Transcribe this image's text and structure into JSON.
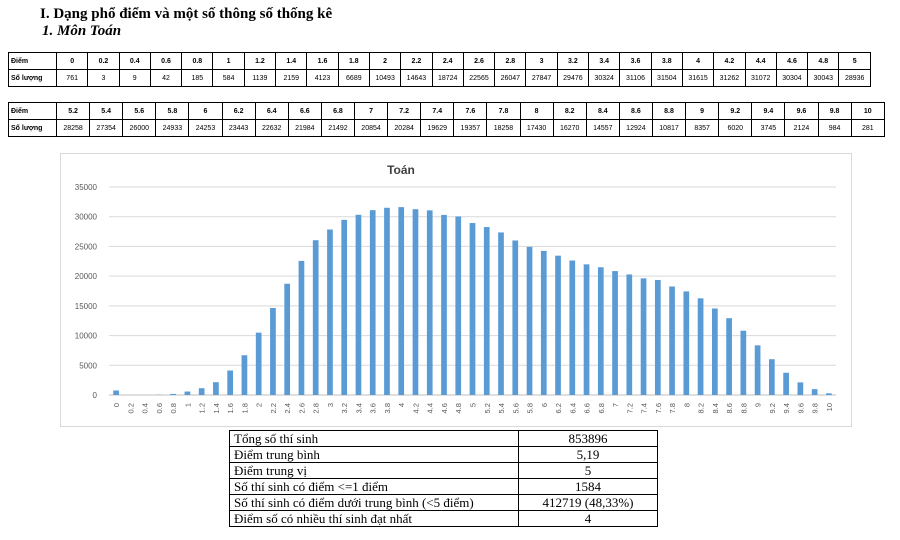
{
  "heading": {
    "title": "I.  Dạng phổ điểm và một số thông số thống kê",
    "subtitle": "1.  Môn Toán"
  },
  "score_table": {
    "row_label_score": "Điểm",
    "row_label_count": "Số lượng",
    "part1": {
      "scores": [
        "0",
        "0.2",
        "0.4",
        "0.6",
        "0.8",
        "1",
        "1.2",
        "1.4",
        "1.6",
        "1.8",
        "2",
        "2.2",
        "2.4",
        "2.6",
        "2.8",
        "3",
        "3.2",
        "3.4",
        "3.6",
        "3.8",
        "4",
        "4.2",
        "4.4",
        "4.6",
        "4.8",
        "5"
      ],
      "counts": [
        "761",
        "3",
        "9",
        "42",
        "185",
        "584",
        "1139",
        "2159",
        "4123",
        "6689",
        "10493",
        "14643",
        "18724",
        "22565",
        "26047",
        "27847",
        "29476",
        "30324",
        "31106",
        "31504",
        "31615",
        "31262",
        "31072",
        "30304",
        "30043",
        "28936"
      ]
    },
    "part2": {
      "scores": [
        "5.2",
        "5.4",
        "5.6",
        "5.8",
        "6",
        "6.2",
        "6.4",
        "6.6",
        "6.8",
        "7",
        "7.2",
        "7.4",
        "7.6",
        "7.8",
        "8",
        "8.2",
        "8.4",
        "8.6",
        "8.8",
        "9",
        "9.2",
        "9.4",
        "9.6",
        "9.8",
        "10"
      ],
      "counts": [
        "28258",
        "27354",
        "26000",
        "24933",
        "24253",
        "23443",
        "22632",
        "21984",
        "21492",
        "20854",
        "20284",
        "19629",
        "19357",
        "18258",
        "17430",
        "16270",
        "14557",
        "12924",
        "10817",
        "8357",
        "6020",
        "3745",
        "2124",
        "984",
        "281"
      ]
    }
  },
  "chart_data": {
    "type": "bar",
    "title": "Toán",
    "xlabel": "",
    "ylabel": "",
    "ylim": [
      0,
      35000
    ],
    "yticks": [
      "0",
      "5000",
      "10000",
      "15000",
      "20000",
      "25000",
      "30000",
      "35000"
    ],
    "grid": true,
    "bar_color": "#5b9bd5",
    "categories": [
      "0",
      "0.2",
      "0.4",
      "0.6",
      "0.8",
      "1",
      "1.2",
      "1.4",
      "1.6",
      "1.8",
      "2",
      "2.2",
      "2.4",
      "2.6",
      "2.8",
      "3",
      "3.2",
      "3.4",
      "3.6",
      "3.8",
      "4",
      "4.2",
      "4.4",
      "4.6",
      "4.8",
      "5",
      "5.2",
      "5.4",
      "5.6",
      "5.8",
      "6",
      "6.2",
      "6.4",
      "6.6",
      "6.8",
      "7",
      "7.2",
      "7.4",
      "7.6",
      "7.8",
      "8",
      "8.2",
      "8.4",
      "8.6",
      "8.8",
      "9",
      "9.2",
      "9.4",
      "9.6",
      "9.8",
      "10"
    ],
    "values": [
      761,
      3,
      9,
      42,
      185,
      584,
      1139,
      2159,
      4123,
      6689,
      10493,
      14643,
      18724,
      22565,
      26047,
      27847,
      29476,
      30324,
      31106,
      31504,
      31615,
      31262,
      31072,
      30304,
      30043,
      28936,
      28258,
      27354,
      26000,
      24933,
      24253,
      23443,
      22632,
      21984,
      21492,
      20854,
      20284,
      19629,
      19357,
      18258,
      17430,
      16270,
      14557,
      12924,
      10817,
      8357,
      6020,
      3745,
      2124,
      984,
      281
    ]
  },
  "stats": [
    {
      "label": "Tổng số thí sinh",
      "value": "853896"
    },
    {
      "label": "Điểm trung bình",
      "value": "5,19"
    },
    {
      "label": "Điểm trung vị",
      "value": "5"
    },
    {
      "label": "Số thí sinh có điểm <=1 điểm",
      "value": "1584"
    },
    {
      "label": "Số thí sinh có điểm dưới trung bình (<5 điểm)",
      "value": "412719 (48,33%)"
    },
    {
      "label": "Điểm số có nhiều thí sinh đạt nhất",
      "value": "4"
    }
  ]
}
